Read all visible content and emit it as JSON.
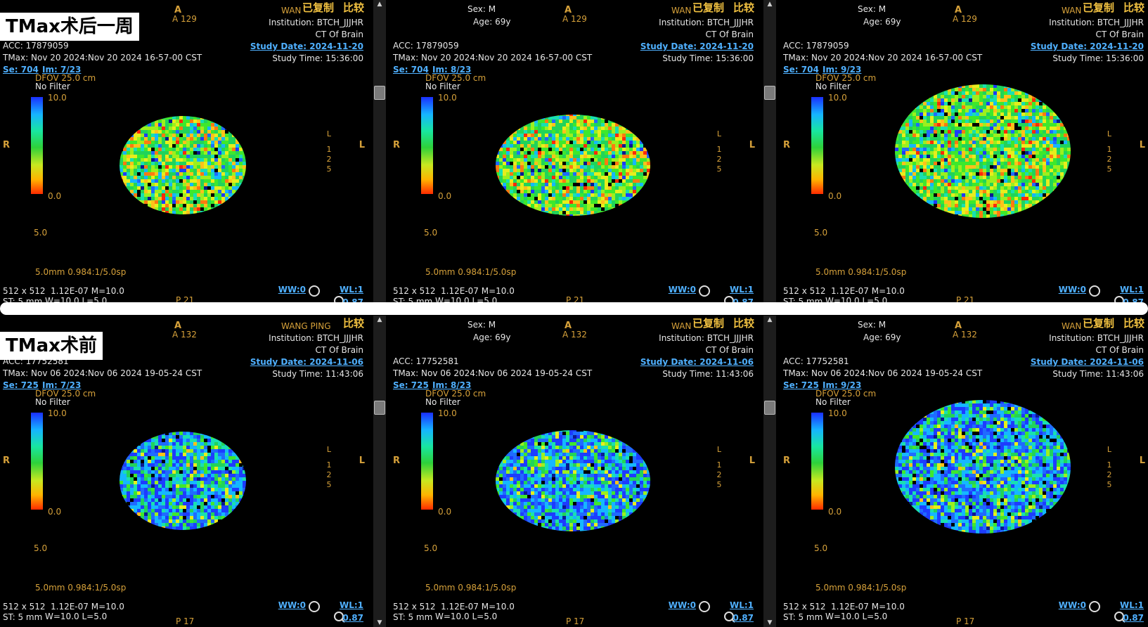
{
  "labels": {
    "top": "TMax术后一周",
    "bottom": "TMax术前"
  },
  "rows": [
    {
      "name": "top",
      "a_index": "A 129",
      "acc": "ACC: 17879059",
      "tmax": "TMax: Nov 20 2024:Nov 20 2024 16-57-00 CST",
      "se": "Se: 704",
      "study_date": "Study Date: 2024-11-20",
      "study_time": "Study Time: 15:36:00",
      "p_index": "P 21",
      "images": [
        "Im: 7/23",
        "Im: 8/23",
        "Im: 9/23"
      ]
    },
    {
      "name": "bottom",
      "a_index": "A 132",
      "acc": "ACC: 17752581",
      "tmax": "TMax: Nov 06 2024:Nov 06 2024 19-05-24 CST",
      "se": "Se: 725",
      "study_date": "Study Date: 2024-11-06",
      "study_time": "Study Time: 11:43:06",
      "p_index": "P 17",
      "images": [
        "Im: 7/23",
        "Im: 8/23",
        "Im: 9/23"
      ]
    }
  ],
  "common": {
    "a": "A",
    "patient_name": "WANG PING",
    "patient_short": "WAN",
    "copied": "已复制",
    "compare": "比较",
    "institution": "Institution: BTCH_JJJHR",
    "study_desc": "CT Of Brain",
    "sex": "Sex: M",
    "age": "Age: 69y",
    "dfov": "DFOV 25.0 cm",
    "filter": "No Filter",
    "scale_max": "10.0",
    "scale_min": "0.0",
    "scale_mid": "5.0",
    "slice": "5.0mm 0.984:1/5.0sp",
    "matrix": "512 x 512",
    "param": "1.12E-07 M=10.0",
    "st": "ST: 5 mm",
    "wl_params": "W=10.0 L=5.0",
    "ww": "WW:0",
    "wl": "WL:1",
    "zoom": "0.87",
    "orient_right": "R",
    "orient_left": "L",
    "side_label": [
      "L",
      "1",
      "2",
      "5"
    ],
    "p": "P"
  },
  "colors": {
    "accent": "#d6a13a",
    "link": "#4fb0ff"
  }
}
